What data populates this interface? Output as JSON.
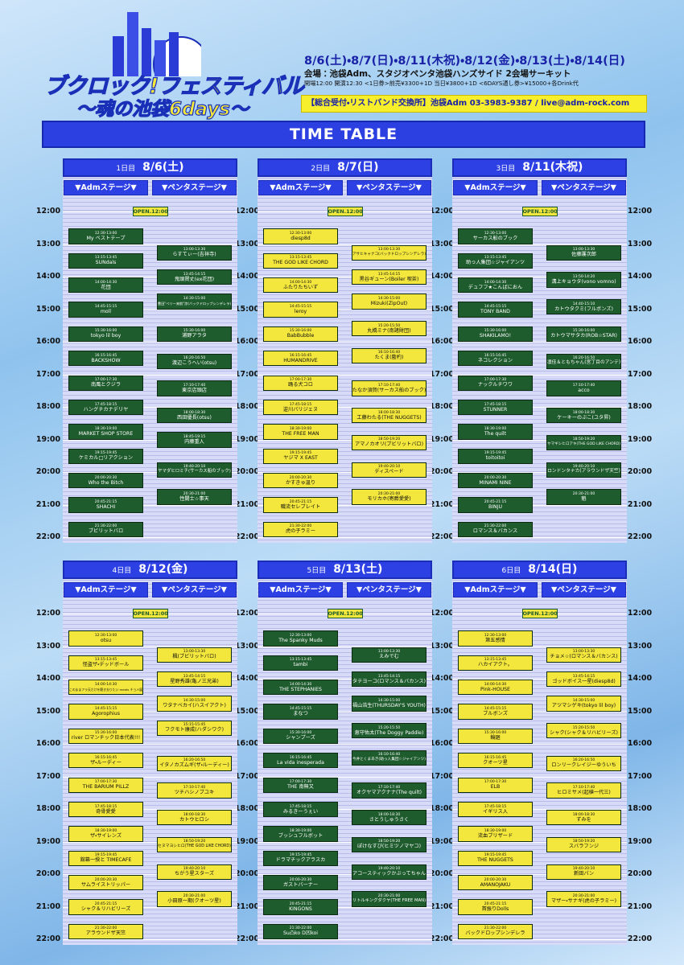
{
  "header": {
    "logo_title": "ブクロック!フェスティバル",
    "logo_subtitle": "〜魂の池袋6days〜",
    "dates": "8/6(土)・8/7(日)・8/11(木祝)・8/12(金)・8/13(土)・8/14(日)",
    "venue": "会場：池袋Adm、スタジオペンタ池袋ハンズサイド 2会場サーキット",
    "admission": "開場12:00 開演12:30 <1日券>前売¥3300+1D 当日¥3800+1D <6DAYS通し券>¥15000+各Drink代",
    "contact": "【総合受付・リストバンド交換所】池袋Adm 03-3983-9387 / live@adm-rock.com"
  },
  "timetable_title": "TIME TABLE",
  "open_label": "OPEN.12:00",
  "hours": [
    "12:00",
    "13:00",
    "14:00",
    "15:00",
    "16:00",
    "17:00",
    "18:00",
    "19:00",
    "20:00",
    "21:00",
    "22:00"
  ],
  "days": [
    {
      "label": "1日目",
      "date": "8/6(土)",
      "stages": [
        {
          "name": "▼Admステージ▼",
          "color": "#1e5b2d",
          "text_color": "#ffffff",
          "acts": [
            {
              "time": "12:30-13:00",
              "name": "My ベストテープ"
            },
            {
              "time": "13:15-13:45",
              "name": "SUNdals"
            },
            {
              "time": "14:00-14:30",
              "name": "花団"
            },
            {
              "time": "14:45-15:15",
              "name": "moll"
            },
            {
              "time": "15:30-16:00",
              "name": "tokyo lil boy"
            },
            {
              "time": "16:15-16:45",
              "name": "BACKSHOW"
            },
            {
              "time": "17:00-17:30",
              "name": "南風とクジラ"
            },
            {
              "time": "17:45-18:15",
              "name": "ハングチカナデリヤ"
            },
            {
              "time": "18:30-19:00",
              "name": "MARKET SHOP STORE"
            },
            {
              "time": "19:15-19:45",
              "name": "ケミカル□リアクション"
            },
            {
              "time": "20:00-20:30",
              "name": "Who the Bitch"
            },
            {
              "time": "20:45-21:15",
              "name": "SHACHI"
            },
            {
              "time": "21:30-22:00",
              "name": "ブビリットバロ"
            }
          ]
        },
        {
          "name": "▼ペンタステージ▼",
          "color": "#1e5b2d",
          "text_color": "#ffffff",
          "acts": [
            {
              "time": "13:00-13:30",
              "name": "らすてぃー(吉祥寺)"
            },
            {
              "time": "13:45-14:15",
              "name": "鬼頭賢丈(ex花団)"
            },
            {
              "time": "14:30-15:00",
              "name": "豊田\"ベリー来航\"渉(バックドロップシンデレラ)"
            },
            {
              "time": "15:30-16:00",
              "name": "浦野アラタ"
            },
            {
              "time": "16:20-16:50",
              "name": "渡辺こうへい(otsu)"
            },
            {
              "time": "17:10-17:40",
              "name": "東京店頭店"
            },
            {
              "time": "18:00-18:30",
              "name": "西田優長(otsu)"
            },
            {
              "time": "18:45-19:15",
              "name": "内藤重人"
            },
            {
              "time": "19:40-20:10",
              "name": "ヤマダヒロミチ(サーカス船のブック)"
            },
            {
              "time": "20:30-21:00",
              "name": "性闘士☆事天"
            }
          ]
        }
      ]
    },
    {
      "label": "2日目",
      "date": "8/7(日)",
      "stages": [
        {
          "name": "▼Admステージ▼",
          "color": "#f3e63c",
          "text_color": "#111111",
          "acts": [
            {
              "time": "12:30-13:00",
              "name": "diesp8d"
            },
            {
              "time": "13:15-13:45",
              "name": "THE GOD LIKE CHORD"
            },
            {
              "time": "14:00-14:30",
              "name": "ふたりたちいず"
            },
            {
              "time": "14:45-15:15",
              "name": "leroy"
            },
            {
              "time": "15:30-16:00",
              "name": "BabBubble"
            },
            {
              "time": "16:15-16:45",
              "name": "HUMANDRIVE"
            },
            {
              "time": "17:00-17:30",
              "name": "踊る犬コロ"
            },
            {
              "time": "17:45-18:15",
              "name": "逆川バリジェヌ"
            },
            {
              "time": "18:30-19:00",
              "name": "THE FREE MAN"
            },
            {
              "time": "19:15-19:45",
              "name": "ヤジマ X EAST"
            },
            {
              "time": "20:00-20:30",
              "name": "かすきゅ温り"
            },
            {
              "time": "20:45-21:15",
              "name": "職流セレブレイト"
            },
            {
              "time": "21:30-22:00",
              "name": "虎の子ラミー"
            }
          ]
        },
        {
          "name": "▼ペンタステージ▼",
          "color": "#f3e63c",
          "text_color": "#111111",
          "acts": [
            {
              "time": "13:00-13:30",
              "name": "アサヒキャナコ(バックドロップシンデレラ)"
            },
            {
              "time": "13:45-14:15",
              "name": "黒谷ギューン(Boiler 喫茶)"
            },
            {
              "time": "14:30-15:00",
              "name": "Mizuki(ZipOut)"
            },
            {
              "time": "15:20-15:50",
              "name": "丸橋ミナ(南諸財団)"
            },
            {
              "time": "16:10-16:40",
              "name": "たくま(藍杓)"
            },
            {
              "time": "17:10-17:40",
              "name": "たなか須賀(サーカス船のブック)"
            },
            {
              "time": "18:00-18:30",
              "name": "工藤わたる(THE NUGGETS)"
            },
            {
              "time": "18:50-19:20",
              "name": "アマノカオリ(ブビリットバロ)"
            },
            {
              "time": "19:40-20:10",
              "name": "ディスペード"
            },
            {
              "time": "20:30-21:00",
              "name": "モリカホ(寄爵愛愛)"
            }
          ]
        }
      ]
    },
    {
      "label": "3日目",
      "date": "8/11(木祝)",
      "stages": [
        {
          "name": "▼Admステージ▼",
          "color": "#1e5b2d",
          "text_color": "#ffffff",
          "acts": [
            {
              "time": "12:30-13:00",
              "name": "サーカス船のブック"
            },
            {
              "time": "13:15-13:45",
              "name": "助っ人集団☆ジャイアンツ"
            },
            {
              "time": "14:00-14:30",
              "name": "デュフフ★こんばにおん"
            },
            {
              "time": "14:45-15:15",
              "name": "TONY BAND"
            },
            {
              "time": "15:30-16:00",
              "name": "SHAKILAMO!"
            },
            {
              "time": "16:15-16:45",
              "name": "ネコレクション"
            },
            {
              "time": "17:00-17:30",
              "name": "ナックルチワワ"
            },
            {
              "time": "17:45-18:15",
              "name": "STUNNER"
            },
            {
              "time": "18:30-19:00",
              "name": "The quilt"
            },
            {
              "time": "19:15-19:45",
              "name": "toitoitoi"
            },
            {
              "time": "20:00-20:30",
              "name": "MINAMI NINE"
            },
            {
              "time": "20:45-21:15",
              "name": "BINJU"
            },
            {
              "time": "21:30-22:00",
              "name": "ロマンス＆バカンス"
            }
          ]
        },
        {
          "name": "▼ペンタステージ▼",
          "color": "#1e5b2d",
          "text_color": "#ffffff",
          "acts": [
            {
              "time": "13:00-13:30",
              "name": "佐藤護次郎"
            },
            {
              "time": "13:50-14:20",
              "name": "溝上キョウタ(vono vomno)"
            },
            {
              "time": "14:40-15:10",
              "name": "カトウタクミ(フルボンズ)"
            },
            {
              "time": "15:30-16:00",
              "name": "カトウマサタカ(ROB☆STAR)"
            },
            {
              "time": "16:20-16:50",
              "name": "凛佳＆ともちゃん(宮丁目のアンテ)"
            },
            {
              "time": "17:10-17:40",
              "name": "acco"
            },
            {
              "time": "18:00-18:30",
              "name": "ケーキーのぶこ(ユタ昇)"
            },
            {
              "time": "18:50-19:20",
              "name": "ヤマギシヒロアキ(THE GOD LIKE CHORD)"
            },
            {
              "time": "19:40-20:10",
              "name": "ロンドンタナカ(アラウンドザ天竺)"
            },
            {
              "time": "20:30-21:00",
              "name": "魁"
            }
          ]
        }
      ]
    },
    {
      "label": "4日目",
      "date": "8/12(金)",
      "stages": [
        {
          "name": "▼Admステージ▼",
          "color": "#f3e63c",
          "text_color": "#111111",
          "acts": [
            {
              "time": "12:30-13:00",
              "name": "otsu"
            },
            {
              "time": "13:15-13:45",
              "name": "怪盗ザ・デッドボール"
            },
            {
              "time": "14:00-14:30",
              "name": "このままアラ天だけを聴き去りたい meets チョメ展"
            },
            {
              "time": "14:45-15:15",
              "name": "Agorophius"
            },
            {
              "time": "15:30-16:00",
              "name": "river ロマンチック日本代表!!!"
            },
            {
              "time": "16:15-16:45",
              "name": "ザ・ルーディー"
            },
            {
              "time": "17:00-17:30",
              "name": "THE BARIUM PILLZ"
            },
            {
              "time": "17:45-18:15",
              "name": "奇骨愛愛"
            },
            {
              "time": "18:30-19:00",
              "name": "ザ・サイレンズ"
            },
            {
              "time": "19:15-19:45",
              "name": "舘幕一揆と TIMECAFE"
            },
            {
              "time": "20:00-20:30",
              "name": "サムライストリッパー"
            },
            {
              "time": "20:45-21:15",
              "name": "シャク＆リハビリーズ"
            },
            {
              "time": "21:30-22:00",
              "name": "アラウンドザ天竺"
            }
          ]
        },
        {
          "name": "▼ペンタステージ▼",
          "color": "#f3e63c",
          "text_color": "#111111",
          "acts": [
            {
              "time": "13:00-13:30",
              "name": "楓(ブビリットバロ)"
            },
            {
              "time": "13:45-14:15",
              "name": "星野秀雄(亀ノ三兄弟)"
            },
            {
              "time": "14:30-15:00",
              "name": "ワタナベカイ(ハスイアクト)"
            },
            {
              "time": "15:15-15:45",
              "name": "フクモト康成(ハダシワク)"
            },
            {
              "time": "16:20-16:50",
              "name": "イタノカズムギ(ザ・ルーディー)"
            },
            {
              "time": "17:10-17:40",
              "name": "ツチハシノブユキ"
            },
            {
              "time": "18:00-18:30",
              "name": "カトウヒロシ"
            },
            {
              "time": "18:50-19:20",
              "name": "セヌマヨシヒロ(THE GOD LIKE CHORD)"
            },
            {
              "time": "19:40-20:10",
              "name": "ちがう星スターズ"
            },
            {
              "time": "20:30-21:00",
              "name": "小田原一期(クオーツ星)"
            }
          ]
        }
      ]
    },
    {
      "label": "5日目",
      "date": "8/13(土)",
      "stages": [
        {
          "name": "▼Admステージ▼",
          "color": "#1e5b2d",
          "text_color": "#ffffff",
          "acts": [
            {
              "time": "12:30-13:00",
              "name": "The Spanky Muds"
            },
            {
              "time": "13:15-13:45",
              "name": "tambi"
            },
            {
              "time": "14:00-14:30",
              "name": "THE STEPHANIES"
            },
            {
              "time": "14:45-15:15",
              "name": "まなつ"
            },
            {
              "time": "15:30-16:00",
              "name": "シャンプーズ"
            },
            {
              "time": "16:15-16:45",
              "name": "La vida inesperada"
            },
            {
              "time": "17:00-17:30",
              "name": "THE 南無又"
            },
            {
              "time": "17:45-18:15",
              "name": "みるきーうぇい"
            },
            {
              "time": "18:30-19:00",
              "name": "ブッシュフルボット"
            },
            {
              "time": "19:15-19:45",
              "name": "ドラマチックアラスカ"
            },
            {
              "time": "20:00-20:30",
              "name": "ガストバーナー"
            },
            {
              "time": "20:45-21:15",
              "name": "KINGONS"
            },
            {
              "time": "21:30-22:00",
              "name": "Su凸ko D凹koi"
            }
          ]
        },
        {
          "name": "▼ペンタステージ▼",
          "color": "#1e5b2d",
          "text_color": "#ffffff",
          "acts": [
            {
              "time": "13:00-13:30",
              "name": "えみでむ"
            },
            {
              "time": "13:45-14:15",
              "name": "タテヨーコ(ロマンス＆バカンス)"
            },
            {
              "time": "14:30-15:00",
              "name": "福山浩生(THURSDAY'S YOUTH)"
            },
            {
              "time": "15:20-15:50",
              "name": "恵守佑太(The Doggy Paddle)"
            },
            {
              "time": "16:10-16:40",
              "name": "今井とくまあき(助っ人集団☆ジャイアンツ)"
            },
            {
              "time": "17:10-17:40",
              "name": "オクヤマアクナナ(The quilt)"
            },
            {
              "time": "18:00-18:30",
              "name": "さとうしゅうさく"
            },
            {
              "time": "18:50-19:20",
              "name": "ぽけなすび(ヒミツノマヤコ)"
            },
            {
              "time": "19:40-20:10",
              "name": "アコースティックかぶってちゃん"
            },
            {
              "time": "20:30-21:00",
              "name": "リトルキングダクヤ(THE FREE MAN)"
            }
          ]
        }
      ]
    },
    {
      "label": "6日目",
      "date": "8/14(日)",
      "stages": [
        {
          "name": "▼Admステージ▼",
          "color": "#f3e63c",
          "text_color": "#111111",
          "acts": [
            {
              "time": "12:30-13:00",
              "name": "第五感情"
            },
            {
              "time": "13:15-13:45",
              "name": "ハカイアクト。"
            },
            {
              "time": "14:00-14:30",
              "name": "Pink-HOUSE"
            },
            {
              "time": "14:45-15:15",
              "name": "ブルボンズ"
            },
            {
              "time": "15:30-16:00",
              "name": "輪廻"
            },
            {
              "time": "16:15-16:45",
              "name": "クオーツ星"
            },
            {
              "time": "17:00-17:30",
              "name": "ELB"
            },
            {
              "time": "17:45-18:15",
              "name": "イギリス人"
            },
            {
              "time": "18:30-19:00",
              "name": "流血ブリザード"
            },
            {
              "time": "19:15-19:45",
              "name": "THE NUGGETS"
            },
            {
              "time": "20:00-20:30",
              "name": "AMANOJAKU"
            },
            {
              "time": "20:45-21:15",
              "name": "首振りDolls"
            },
            {
              "time": "21:30-22:00",
              "name": "バックドロップシンデレラ"
            }
          ]
        },
        {
          "name": "▼ペンタステージ▼",
          "color": "#f3e63c",
          "text_color": "#111111",
          "acts": [
            {
              "time": "13:00-13:30",
              "name": "チョメ☆(ロマンス＆バカンス)"
            },
            {
              "time": "13:45-14:15",
              "name": "ゴッドボイス一星(diesp8d)"
            },
            {
              "time": "14:30-15:00",
              "name": "アツマシゲキ(tokyo lil boy)"
            },
            {
              "time": "15:20-15:50",
              "name": "シャク(シャク＆リハビリーズ)"
            },
            {
              "time": "16:20-16:50",
              "name": "ロンリークレイジーゆういち"
            },
            {
              "time": "17:10-17:40",
              "name": "ヒロミサメ(起植一代三)"
            },
            {
              "time": "18:00-18:30",
              "name": "ずみを"
            },
            {
              "time": "18:50-19:20",
              "name": "スバラフンジ"
            },
            {
              "time": "19:40-20:10",
              "name": "新田パン"
            },
            {
              "time": "20:30-21:00",
              "name": "マザー・サナギ(虎の子ラミー)"
            }
          ]
        }
      ]
    }
  ]
}
